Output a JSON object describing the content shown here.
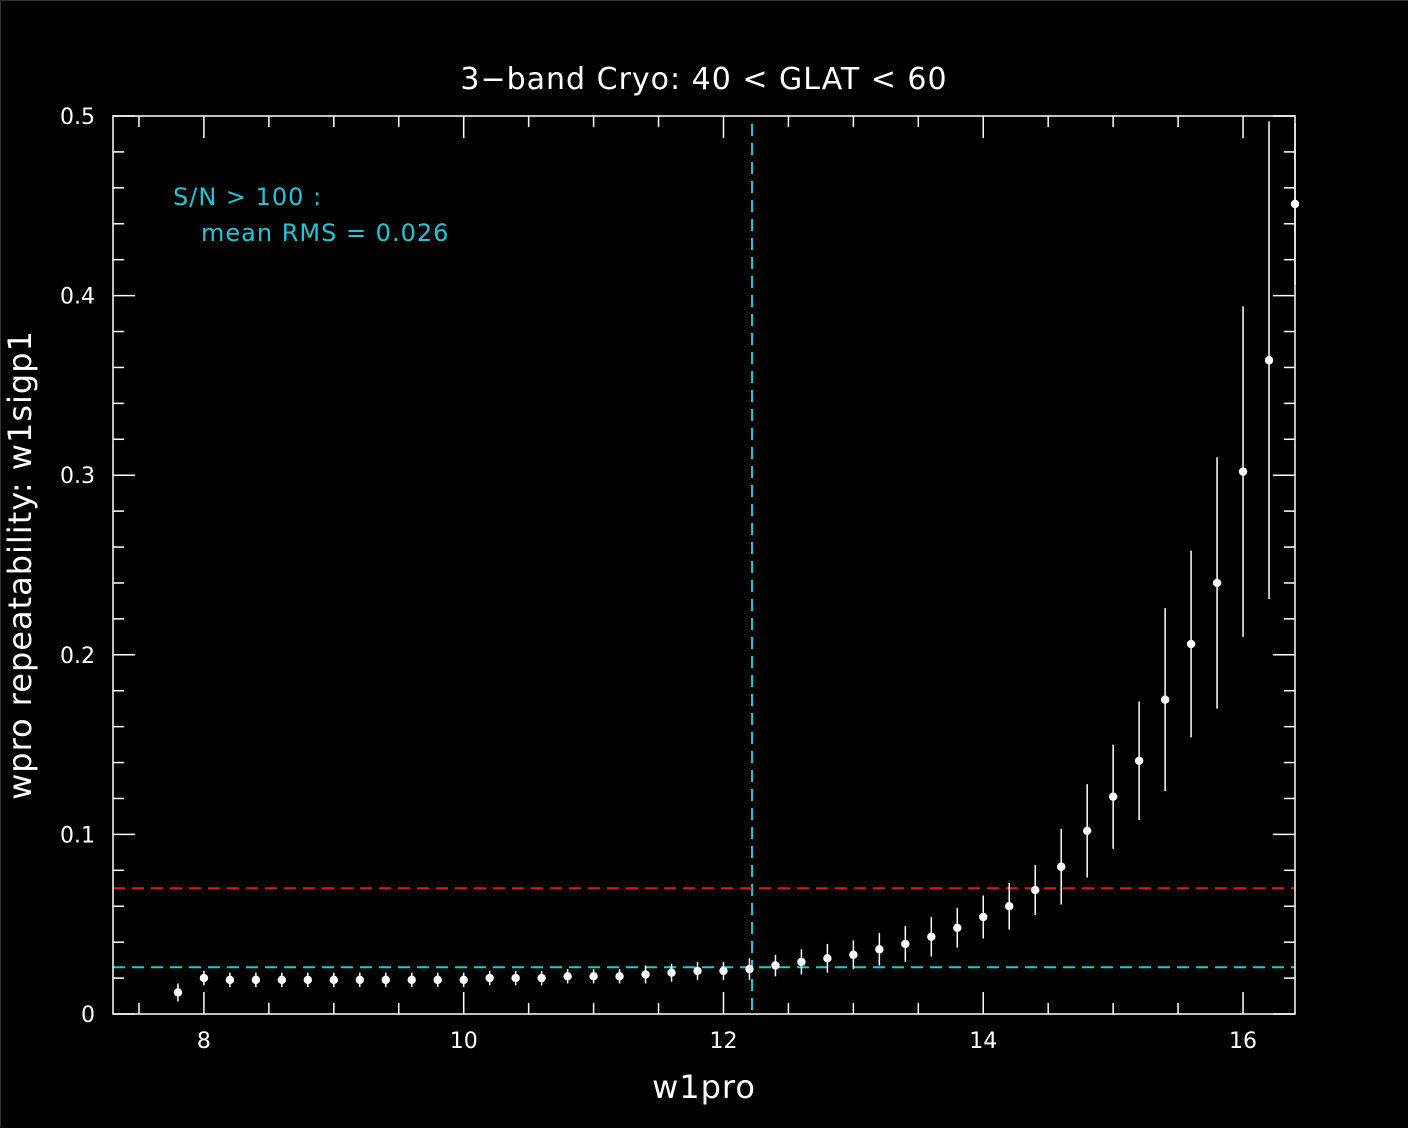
{
  "chart_data": {
    "type": "scatter",
    "title": "3−band Cryo:  40 < GLAT < 60",
    "xlabel": "w1pro",
    "ylabel": "wpro repeatability:  w1sigp1",
    "xlim": [
      7.3,
      16.4
    ],
    "ylim": [
      0,
      0.5
    ],
    "x_ticks": [
      8,
      10,
      12,
      14,
      16
    ],
    "y_ticks": [
      0,
      0.1,
      0.2,
      0.3,
      0.4,
      0.5
    ],
    "x_tick_labels": [
      "8",
      "10",
      "12",
      "14",
      "16"
    ],
    "y_tick_labels": [
      "0",
      "0.1",
      "0.2",
      "0.3",
      "0.4",
      "0.5"
    ],
    "grid": false,
    "annotation": {
      "line1": "S/N > 100 :",
      "line2": "mean RMS =  0.026",
      "color": "#22c7d6"
    },
    "reference_lines": [
      {
        "orientation": "vertical",
        "value": 12.22,
        "color": "#22c7d6",
        "style": "dashed"
      },
      {
        "orientation": "horizontal",
        "value": 0.026,
        "color": "#22c7d6",
        "style": "dashed"
      },
      {
        "orientation": "horizontal",
        "value": 0.07,
        "color": "#e01818",
        "style": "dashed"
      }
    ],
    "series": [
      {
        "color": "#ffffff",
        "x": [
          7.8,
          8.0,
          8.2,
          8.4,
          8.6,
          8.8,
          9.0,
          9.2,
          9.4,
          9.6,
          9.8,
          10.0,
          10.2,
          10.4,
          10.6,
          10.8,
          11.0,
          11.2,
          11.4,
          11.6,
          11.8,
          12.0,
          12.2,
          12.4,
          12.6,
          12.8,
          13.0,
          13.2,
          13.4,
          13.6,
          13.8,
          14.0,
          14.2,
          14.4,
          14.6,
          14.8,
          15.0,
          15.2,
          15.4,
          15.6,
          15.8,
          16.0,
          16.2,
          16.4
        ],
        "y": [
          0.012,
          0.02,
          0.019,
          0.019,
          0.019,
          0.019,
          0.019,
          0.019,
          0.019,
          0.019,
          0.019,
          0.019,
          0.02,
          0.02,
          0.02,
          0.021,
          0.021,
          0.021,
          0.022,
          0.023,
          0.024,
          0.024,
          0.025,
          0.027,
          0.029,
          0.031,
          0.033,
          0.036,
          0.039,
          0.043,
          0.048,
          0.054,
          0.06,
          0.069,
          0.082,
          0.102,
          0.121,
          0.141,
          0.175,
          0.206,
          0.24,
          0.302,
          0.364,
          0.451
        ],
        "err": [
          0.005,
          0.004,
          0.004,
          0.004,
          0.004,
          0.004,
          0.004,
          0.004,
          0.004,
          0.004,
          0.004,
          0.004,
          0.004,
          0.004,
          0.004,
          0.004,
          0.004,
          0.004,
          0.005,
          0.005,
          0.005,
          0.005,
          0.006,
          0.006,
          0.007,
          0.008,
          0.008,
          0.009,
          0.01,
          0.011,
          0.011,
          0.012,
          0.013,
          0.014,
          0.021,
          0.026,
          0.029,
          0.033,
          0.051,
          0.052,
          0.07,
          0.092,
          0.133,
          0.045
        ]
      }
    ]
  }
}
